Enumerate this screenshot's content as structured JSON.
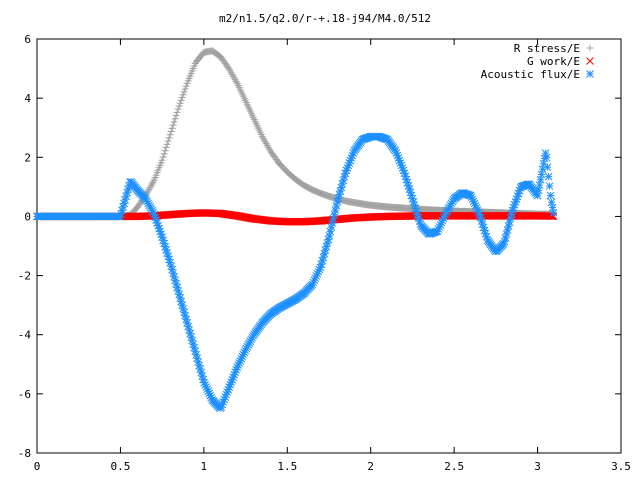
{
  "chart_data": {
    "type": "scatter",
    "title": "m2/n1.5/q2.0/r-+.18-j94/M4.0/512",
    "xlabel": "",
    "ylabel": "",
    "xlim": [
      0,
      3.5
    ],
    "ylim": [
      -8,
      6
    ],
    "x_ticks": [
      "0",
      "0.5",
      "1",
      "1.5",
      "2",
      "2.5",
      "3",
      "3.5"
    ],
    "y_ticks": [
      "-8",
      "-6",
      "-4",
      "-2",
      "0",
      "2",
      "4",
      "6"
    ],
    "grid": false,
    "legend_position": "top-right",
    "series": [
      {
        "name": "R stress/E",
        "marker": "plus",
        "color": "#a0a0a0",
        "x": [
          0.0,
          0.25,
          0.5,
          0.56,
          0.6,
          0.65,
          0.7,
          0.75,
          0.8,
          0.85,
          0.9,
          0.95,
          1.0,
          1.05,
          1.1,
          1.15,
          1.2,
          1.25,
          1.3,
          1.35,
          1.4,
          1.45,
          1.5,
          1.55,
          1.6,
          1.65,
          1.7,
          1.75,
          1.8,
          1.85,
          1.9,
          1.95,
          2.0,
          2.1,
          2.2,
          2.3,
          2.4,
          2.5,
          2.6,
          2.7,
          2.8,
          2.9,
          3.0,
          3.1
        ],
        "y": [
          0.0,
          0.0,
          0.0,
          0.05,
          0.3,
          0.7,
          1.2,
          1.9,
          2.8,
          3.7,
          4.5,
          5.2,
          5.55,
          5.6,
          5.4,
          5.0,
          4.5,
          3.9,
          3.3,
          2.7,
          2.2,
          1.8,
          1.5,
          1.25,
          1.05,
          0.9,
          0.78,
          0.68,
          0.6,
          0.52,
          0.47,
          0.42,
          0.38,
          0.32,
          0.28,
          0.24,
          0.21,
          0.18,
          0.16,
          0.14,
          0.12,
          0.1,
          0.08,
          0.07
        ]
      },
      {
        "name": "G work/E",
        "marker": "cross",
        "color": "#ff0000",
        "x": [
          0.0,
          0.25,
          0.5,
          0.56,
          0.6,
          0.7,
          0.8,
          0.9,
          1.0,
          1.1,
          1.2,
          1.3,
          1.4,
          1.5,
          1.6,
          1.7,
          1.8,
          1.9,
          2.0,
          2.1,
          2.2,
          2.3,
          2.4,
          2.5,
          2.6,
          2.7,
          2.8,
          2.9,
          3.0,
          3.1
        ],
        "y": [
          0.0,
          0.0,
          0.0,
          0.0,
          0.0,
          0.02,
          0.06,
          0.1,
          0.12,
          0.1,
          0.02,
          -0.08,
          -0.15,
          -0.18,
          -0.18,
          -0.15,
          -0.1,
          -0.05,
          -0.02,
          0.0,
          0.01,
          0.02,
          0.02,
          0.02,
          0.02,
          0.02,
          0.02,
          0.02,
          0.02,
          0.01
        ]
      },
      {
        "name": "Acoustic flux/E",
        "marker": "star",
        "color": "#1e90ff",
        "x": [
          0.0,
          0.25,
          0.5,
          0.56,
          0.6,
          0.65,
          0.7,
          0.75,
          0.8,
          0.85,
          0.9,
          0.95,
          1.0,
          1.05,
          1.1,
          1.15,
          1.2,
          1.25,
          1.3,
          1.35,
          1.4,
          1.45,
          1.5,
          1.55,
          1.6,
          1.65,
          1.7,
          1.75,
          1.8,
          1.85,
          1.9,
          1.95,
          2.0,
          2.05,
          2.1,
          2.15,
          2.2,
          2.25,
          2.3,
          2.35,
          2.4,
          2.45,
          2.5,
          2.55,
          2.6,
          2.65,
          2.7,
          2.75,
          2.8,
          2.85,
          2.9,
          2.95,
          3.0,
          3.05,
          3.08,
          3.1
        ],
        "y": [
          0.0,
          0.0,
          0.0,
          1.2,
          0.9,
          0.6,
          0.1,
          -0.7,
          -1.6,
          -2.6,
          -3.6,
          -4.6,
          -5.6,
          -6.2,
          -6.5,
          -5.8,
          -5.1,
          -4.5,
          -4.0,
          -3.6,
          -3.3,
          -3.1,
          -2.95,
          -2.8,
          -2.6,
          -2.3,
          -1.7,
          -0.7,
          0.5,
          1.5,
          2.2,
          2.6,
          2.7,
          2.7,
          2.6,
          2.2,
          1.5,
          0.6,
          -0.3,
          -0.6,
          -0.5,
          0.1,
          0.6,
          0.8,
          0.7,
          0.1,
          -0.8,
          -1.2,
          -0.9,
          0.2,
          1.0,
          1.1,
          0.7,
          2.2,
          0.6,
          0.0
        ]
      }
    ]
  }
}
